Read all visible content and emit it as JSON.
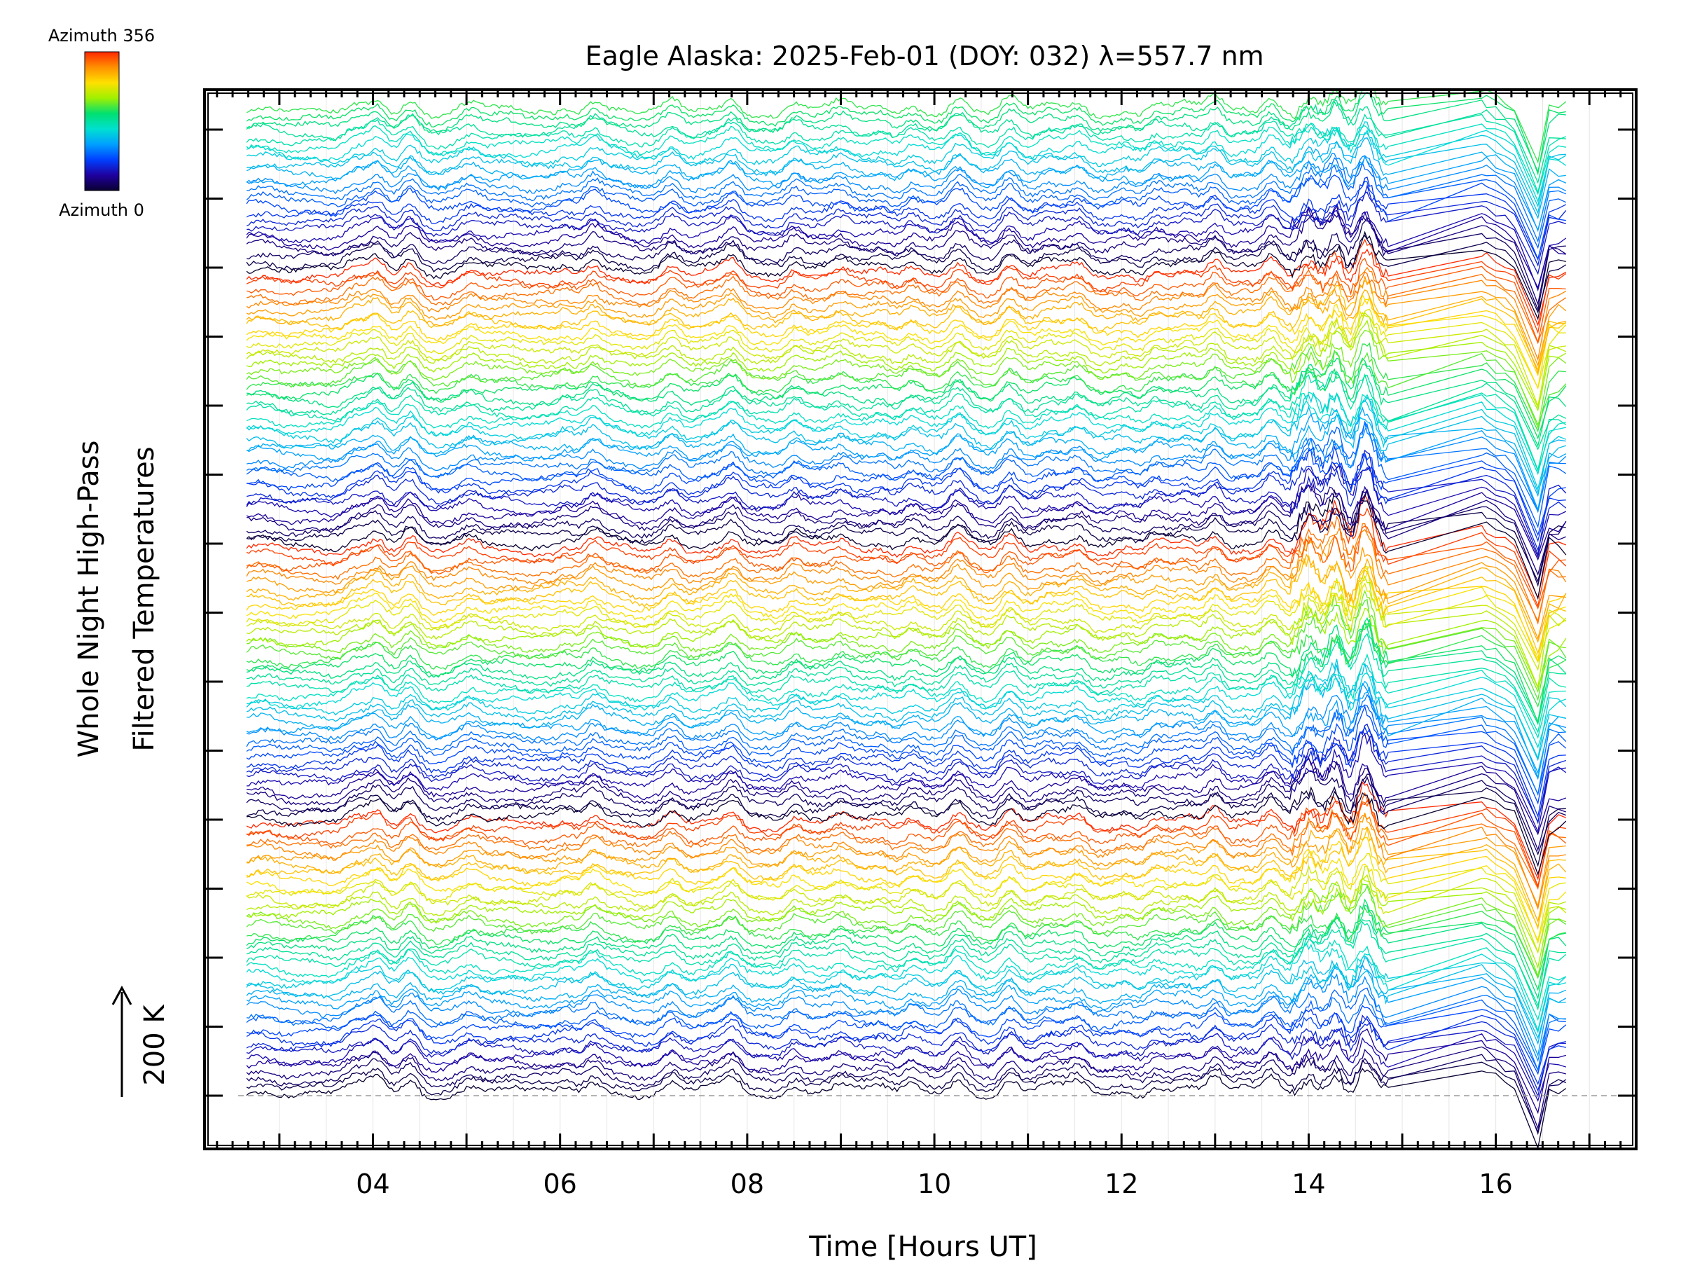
{
  "chart_data": {
    "type": "line",
    "title": "Eagle Alaska: 2025-Feb-01 (DOY: 032) λ=557.7 nm",
    "xlabel": "Time [Hours UT]",
    "ylabel_line1": "Whole Night High-Pass",
    "ylabel_line2": "Filtered Temperatures",
    "scale_label": "200 K",
    "colorbar": {
      "max_label": "Azimuth 356",
      "min_label": "Azimuth 0",
      "colors": [
        "#0a0030",
        "#1f00a0",
        "#0040ff",
        "#00a0ff",
        "#00e0d0",
        "#00e070",
        "#a0f000",
        "#ffe000",
        "#ff9000",
        "#ff2800"
      ]
    },
    "xlim": [
      2.2,
      17.5
    ],
    "xticks": [
      "04",
      "06",
      "08",
      "10",
      "12",
      "14",
      "16"
    ],
    "xtick_values": [
      4,
      6,
      8,
      10,
      12,
      14,
      16
    ],
    "x_start": 2.65,
    "x_end": 16.75,
    "gap_start": 14.85,
    "gap_end": 15.85,
    "gap_end_2": 16.45,
    "n_traces": 144,
    "trace_offset_k": 8.2,
    "feature_times": [
      3.8,
      4.05,
      4.4,
      5.05,
      5.8,
      6.05,
      6.35,
      7.2,
      7.85,
      8.5,
      9.0,
      9.45,
      9.75,
      10.25,
      10.8,
      11.2,
      11.55,
      12.05,
      12.35,
      12.7,
      13.0,
      13.3,
      13.6,
      14.0,
      14.3,
      14.6
    ],
    "grid": true,
    "legend": "colorbar top-left"
  }
}
